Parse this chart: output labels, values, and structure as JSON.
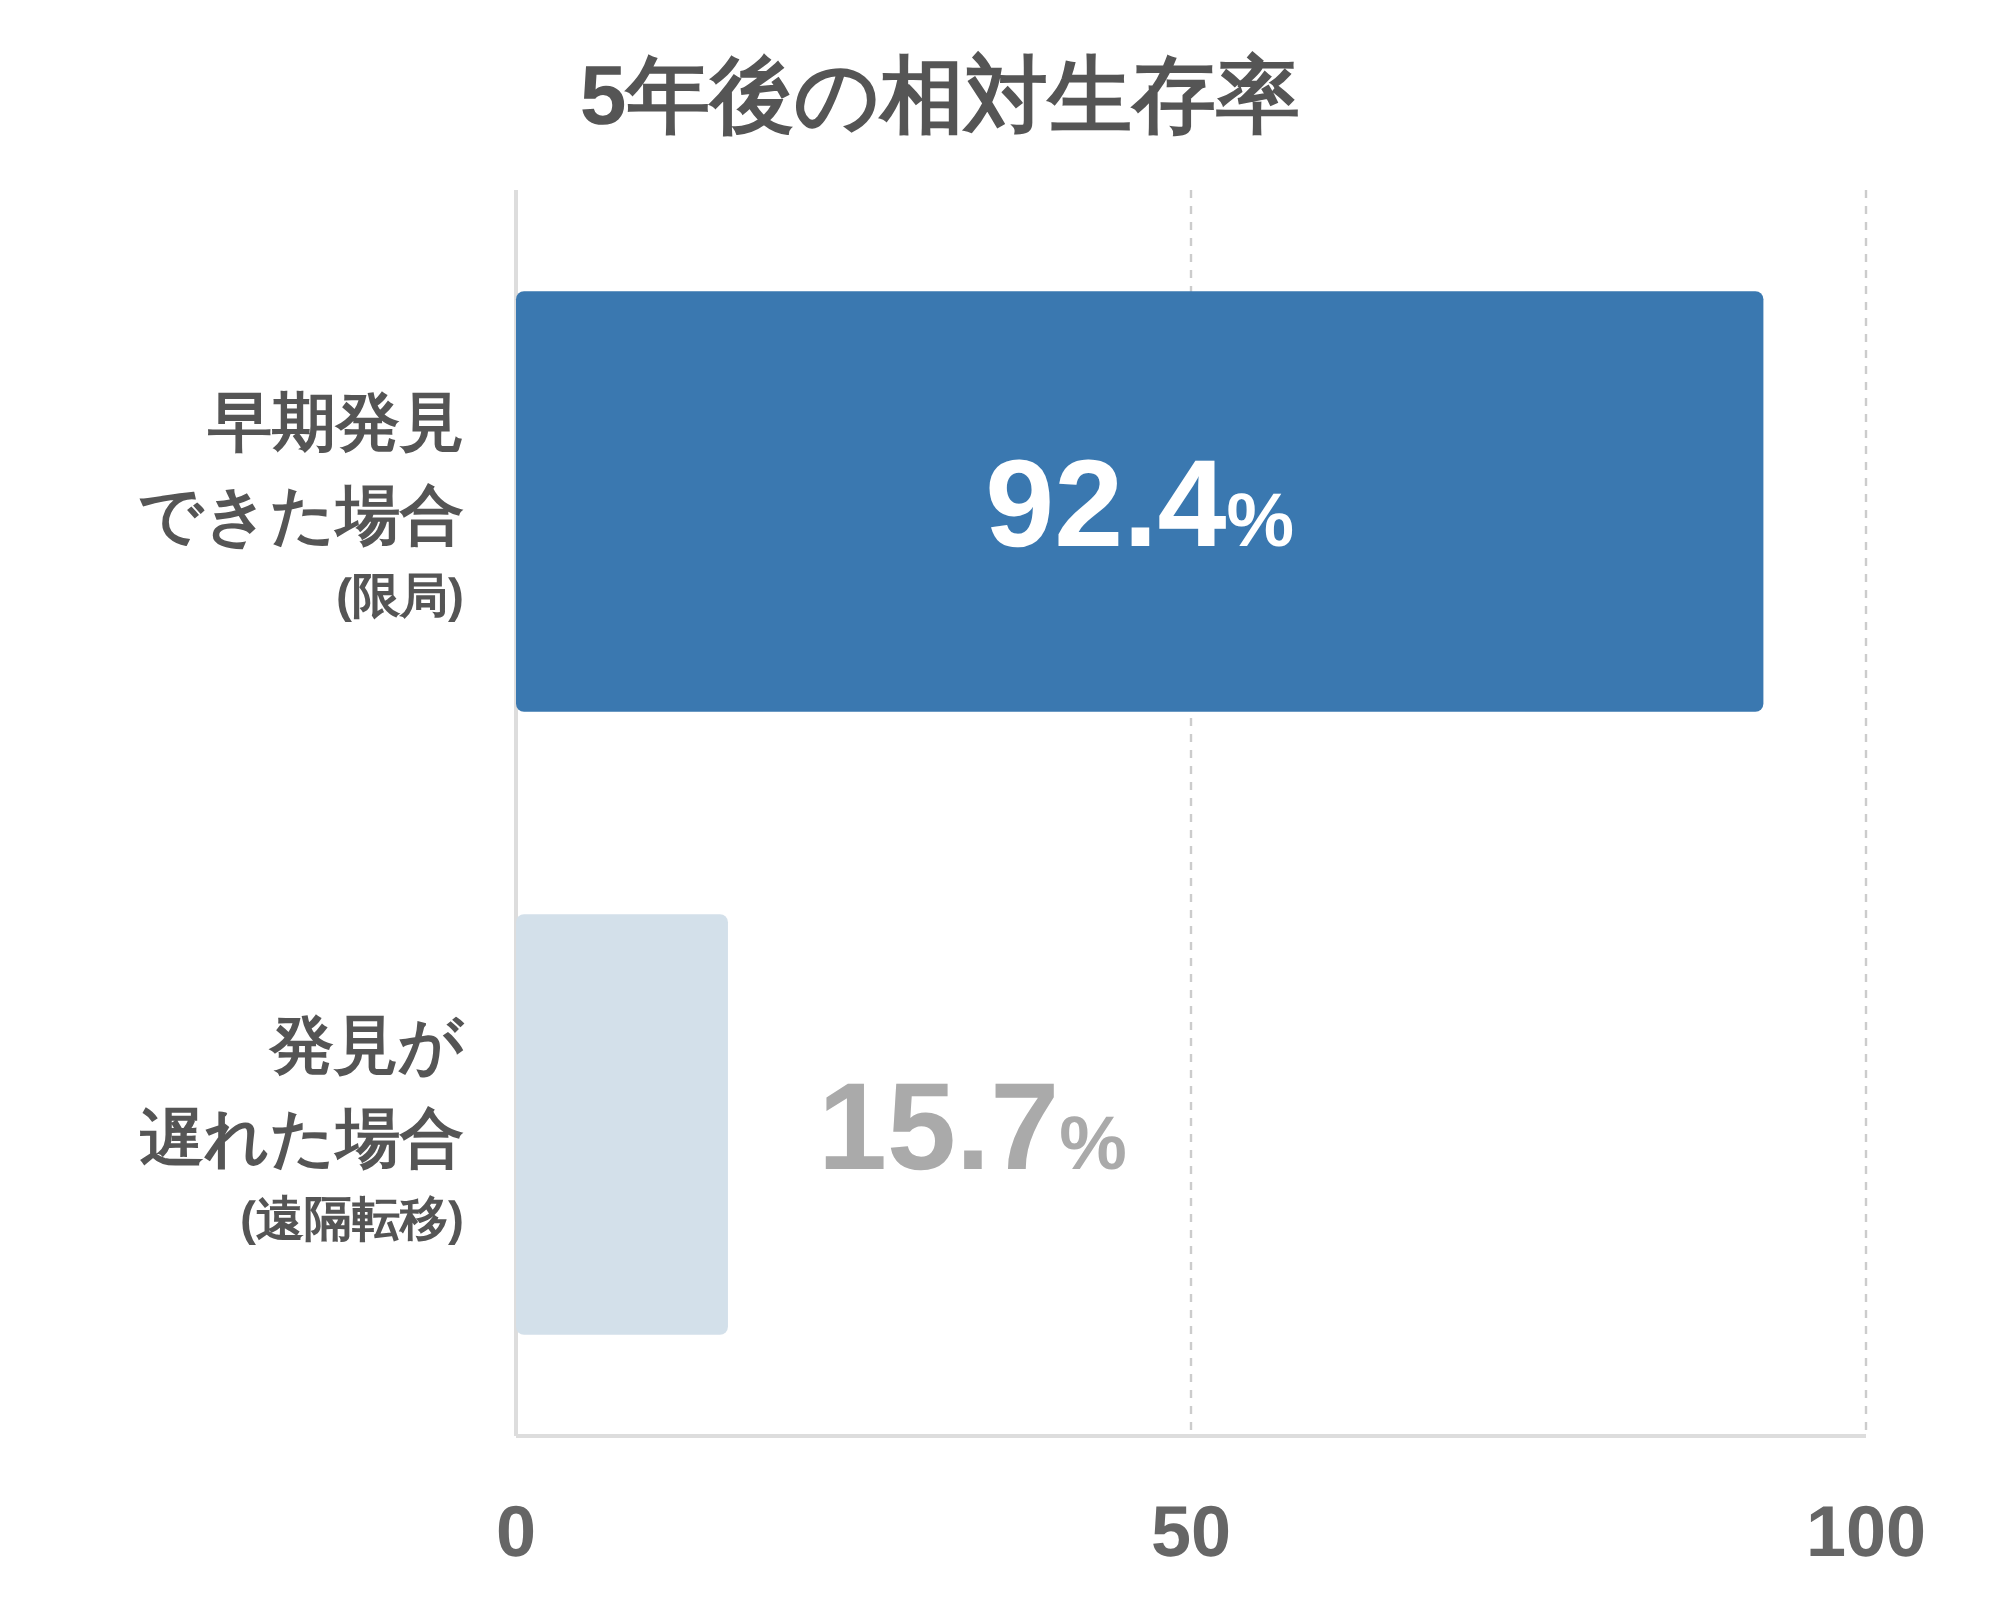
{
  "chart_data": {
    "type": "bar",
    "orientation": "horizontal",
    "title": "5年後の相対生存率",
    "categories": [
      "早期発見できた場合(限局)",
      "発見が遅れた場合(遠隔転移)"
    ],
    "values": [
      92.4,
      15.7
    ],
    "colors": [
      "#3a78b0",
      "#d3e0ea"
    ],
    "value_labels": [
      "92.4%",
      "15.7%"
    ],
    "xlim": [
      0,
      100
    ],
    "xticks": [
      0,
      50,
      100
    ],
    "grid": "x"
  }
}
